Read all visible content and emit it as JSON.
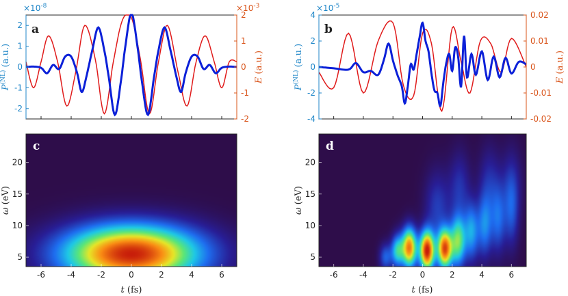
{
  "colors": {
    "blue": "#1f86c8",
    "red": "#d9541a",
    "trace_blue": "#0b20d8",
    "trace_red": "#e01b1b",
    "bg_dark": "#2e0d4a"
  },
  "panels": {
    "a": {
      "label": "a",
      "left_exp": "×10",
      "left_exp_sup": "-8",
      "right_exp": "×10",
      "right_exp_sup": "-3"
    },
    "b": {
      "label": "b",
      "left_exp": "×10",
      "left_exp_sup": "-5"
    },
    "c": {
      "label": "c"
    },
    "d": {
      "label": "d"
    }
  },
  "labels": {
    "P_main": "P",
    "P_sup": "(NL)",
    "P_units": " (a.u.)",
    "E_main": "E",
    "E_units": " (a.u.)",
    "omega_main": "ω",
    "omega_units": " (eV)",
    "t_main": "t",
    "t_units": " (fs)"
  },
  "chart_data": [
    {
      "id": "a",
      "type": "line",
      "xlim": [
        -7,
        7
      ],
      "ylim_left": [
        -2.5,
        2.5
      ],
      "ylim_right": [
        -2,
        2
      ],
      "yticks_left": [
        -2,
        -1,
        0,
        1,
        2
      ],
      "yticklabels_left": [
        "-2",
        "-1",
        "0",
        "1",
        "2"
      ],
      "yticks_right": [
        -2,
        -1,
        0,
        1,
        2
      ],
      "yticklabels_right": [
        "-2",
        "-1",
        "0",
        "1",
        "2"
      ],
      "ylabel_left": "P(NL) (a.u.)",
      "ylabel_right": "E (a.u.)",
      "series": [
        {
          "name": "P(NL)",
          "axis": "left",
          "x": [
            -7.0,
            -6.5,
            -6.0,
            -5.6,
            -5.2,
            -4.8,
            -4.4,
            -4.0,
            -3.6,
            -3.3,
            -3.0,
            -2.6,
            -2.2,
            -1.8,
            -1.5,
            -1.1,
            -0.7,
            -0.4,
            0.0,
            0.4,
            0.7,
            1.1,
            1.5,
            1.8,
            2.2,
            2.6,
            3.0,
            3.3,
            3.6,
            4.0,
            4.4,
            4.8,
            5.2,
            5.6,
            6.0,
            6.5,
            7.0
          ],
          "y": [
            0.0,
            0.02,
            -0.04,
            -0.3,
            0.1,
            -0.1,
            0.5,
            0.5,
            -0.3,
            -1.2,
            -0.5,
            0.8,
            1.9,
            0.8,
            -0.5,
            -2.3,
            -0.7,
            1.0,
            2.6,
            1.0,
            -0.7,
            -2.3,
            -0.5,
            0.8,
            1.9,
            0.8,
            -0.5,
            -1.2,
            -0.3,
            0.5,
            0.5,
            -0.1,
            0.1,
            -0.3,
            -0.04,
            0.02,
            0.0
          ]
        },
        {
          "name": "E",
          "axis": "right",
          "x": [
            -7.0,
            -6.5,
            -6.0,
            -5.5,
            -4.9,
            -4.3,
            -3.7,
            -3.1,
            -2.4,
            -1.8,
            -1.2,
            -0.6,
            0.0,
            0.6,
            1.2,
            1.8,
            2.4,
            3.1,
            3.7,
            4.3,
            4.9,
            5.5,
            6.0,
            6.5,
            7.0
          ],
          "y": [
            0.2,
            -0.8,
            0.2,
            1.2,
            0.2,
            -1.5,
            -0.2,
            1.6,
            0.3,
            -1.8,
            0.2,
            1.8,
            1.9,
            0.3,
            -1.8,
            0.2,
            1.6,
            -0.2,
            -1.5,
            0.2,
            1.2,
            0.2,
            -0.8,
            0.2,
            0.2
          ]
        }
      ]
    },
    {
      "id": "b",
      "type": "line",
      "xlim": [
        -7,
        7
      ],
      "ylim_left": [
        -4,
        4
      ],
      "ylim_right": [
        -0.02,
        0.02
      ],
      "yticks_left": [
        -4,
        -2,
        0,
        2,
        4
      ],
      "yticklabels_left": [
        "-4",
        "-2",
        "0",
        "2",
        "4"
      ],
      "yticks_right": [
        -0.02,
        -0.01,
        0,
        0.01,
        0.02
      ],
      "yticklabels_right": [
        "-0.02",
        "-0.01",
        "0",
        "0.01",
        "0.02"
      ],
      "ylabel_left": "P(NL) (a.u.)",
      "ylabel_right": "E (a.u.)",
      "series": [
        {
          "name": "P(NL)",
          "axis": "left",
          "x": [
            -7.0,
            -6.0,
            -5.0,
            -4.5,
            -4.0,
            -3.5,
            -3.0,
            -2.6,
            -2.3,
            -2.0,
            -1.7,
            -1.4,
            -1.2,
            -1.0,
            -0.8,
            -0.6,
            -0.4,
            -0.2,
            0.0,
            0.2,
            0.4,
            0.6,
            0.8,
            1.0,
            1.2,
            1.4,
            1.6,
            1.8,
            2.0,
            2.2,
            2.4,
            2.6,
            2.8,
            3.0,
            3.3,
            3.6,
            4.0,
            4.4,
            4.8,
            5.2,
            5.6,
            6.0,
            6.5,
            7.0
          ],
          "y": [
            0.0,
            -0.1,
            -0.2,
            0.3,
            -0.4,
            -0.3,
            -0.6,
            0.6,
            1.8,
            0.5,
            -0.6,
            -1.5,
            -2.8,
            -1.5,
            0.2,
            -0.2,
            1.0,
            2.3,
            3.4,
            2.0,
            1.2,
            -0.5,
            -1.8,
            -2.0,
            -3.0,
            -1.2,
            0.3,
            1.0,
            -0.3,
            1.5,
            0.8,
            -1.5,
            2.4,
            -0.8,
            1.0,
            -0.6,
            1.2,
            -1.0,
            0.8,
            -0.8,
            0.7,
            -0.5,
            0.4,
            0.2
          ]
        },
        {
          "name": "E",
          "axis": "right",
          "x": [
            -7.0,
            -6.0,
            -5.0,
            -4.0,
            -3.0,
            -2.0,
            -1.3,
            -0.6,
            0.0,
            0.6,
            1.3,
            2.0,
            2.6,
            3.2,
            3.9,
            4.6,
            5.3,
            6.0,
            7.0
          ],
          "y": [
            -0.002,
            -0.008,
            0.013,
            -0.01,
            0.01,
            0.017,
            -0.007,
            -0.011,
            0.013,
            0.009,
            -0.017,
            0.015,
            0.002,
            -0.01,
            0.01,
            0.009,
            -0.002,
            0.011,
            0.0
          ]
        }
      ]
    },
    {
      "id": "c",
      "type": "heatmap",
      "xlim": [
        -7,
        7
      ],
      "ylim": [
        3.5,
        24.5
      ],
      "xticks": [
        -6,
        -4,
        -2,
        0,
        2,
        4,
        6
      ],
      "xticklabels": [
        "-6",
        "-4",
        "-2",
        "0",
        "2",
        "4",
        "6"
      ],
      "yticks": [
        5,
        10,
        15,
        20
      ],
      "yticklabels": [
        "5",
        "10",
        "15",
        "20"
      ],
      "xlabel": "t (fs)",
      "ylabel": "ω (eV)",
      "blobs": [
        {
          "t": 0.0,
          "w": 5.5,
          "sigma_t": 3.2,
          "sigma_w": 3.2,
          "amp": 1.0
        }
      ]
    },
    {
      "id": "d",
      "type": "heatmap",
      "xlim": [
        -7,
        7
      ],
      "ylim": [
        3.5,
        24.5
      ],
      "xticks": [
        -6,
        -4,
        -2,
        0,
        2,
        4,
        6
      ],
      "xticklabels": [
        "-6",
        "-4",
        "-2",
        "0",
        "2",
        "4",
        "6"
      ],
      "yticks": [
        5,
        10,
        15,
        20
      ],
      "yticklabels": [
        "5",
        "10",
        "15",
        "20"
      ],
      "xlabel": "t (fs)",
      "ylabel": "ω (eV)",
      "blobs": [
        {
          "t": -0.9,
          "w": 6.5,
          "sigma_t": 0.35,
          "sigma_w": 2.2,
          "amp": 0.85
        },
        {
          "t": 0.3,
          "w": 6.0,
          "sigma_t": 0.35,
          "sigma_w": 2.2,
          "amp": 1.0
        },
        {
          "t": 1.5,
          "w": 6.3,
          "sigma_t": 0.35,
          "sigma_w": 2.2,
          "amp": 0.9
        },
        {
          "t": -1.7,
          "w": 6.0,
          "sigma_t": 0.3,
          "sigma_w": 1.8,
          "amp": 0.45
        },
        {
          "t": 2.4,
          "w": 7.5,
          "sigma_t": 0.35,
          "sigma_w": 2.8,
          "amp": 0.55
        },
        {
          "t": -2.5,
          "w": 5.0,
          "sigma_t": 0.3,
          "sigma_w": 1.5,
          "amp": 0.25
        },
        {
          "t": 3.3,
          "w": 9.0,
          "sigma_t": 0.35,
          "sigma_w": 3.2,
          "amp": 0.35
        },
        {
          "t": 4.2,
          "w": 10.0,
          "sigma_t": 0.35,
          "sigma_w": 3.5,
          "amp": 0.3
        },
        {
          "t": 5.1,
          "w": 11.0,
          "sigma_t": 0.35,
          "sigma_w": 3.8,
          "amp": 0.25
        },
        {
          "t": 6.0,
          "w": 12.0,
          "sigma_t": 0.35,
          "sigma_w": 4.0,
          "amp": 0.2
        },
        {
          "t": 1.0,
          "w": 13.0,
          "sigma_t": 0.6,
          "sigma_w": 4.0,
          "amp": 0.18
        },
        {
          "t": 2.5,
          "w": 16.0,
          "sigma_t": 0.5,
          "sigma_w": 4.0,
          "amp": 0.16
        },
        {
          "t": 4.5,
          "w": 17.0,
          "sigma_t": 0.5,
          "sigma_w": 4.0,
          "amp": 0.14
        },
        {
          "t": 6.0,
          "w": 17.0,
          "sigma_t": 0.5,
          "sigma_w": 4.0,
          "amp": 0.12
        }
      ]
    }
  ]
}
